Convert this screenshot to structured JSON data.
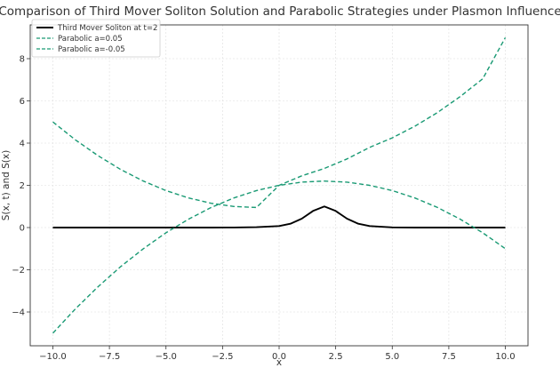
{
  "chart_data": {
    "type": "line",
    "title": "Comparison of Third Mover Soliton Solution and Parabolic Strategies under Plasmon Influence",
    "xlabel": "x",
    "ylabel": "S(x, t) and S(x)",
    "xlim": [
      -11,
      11
    ],
    "ylim": [
      -5.6,
      9.6
    ],
    "xticks": [
      -10,
      -7.5,
      -5,
      -2.5,
      0,
      2.5,
      5,
      7.5,
      10
    ],
    "xtick_labels": [
      "−10.0",
      "−7.5",
      "−5.0",
      "−2.5",
      "0.0",
      "2.5",
      "5.0",
      "7.5",
      "10.0"
    ],
    "yticks": [
      -4,
      -2,
      0,
      2,
      4,
      6,
      8
    ],
    "ytick_labels": [
      "−4",
      "−2",
      "0",
      "2",
      "4",
      "6",
      "8"
    ],
    "grid": true,
    "legend_position": "top-left",
    "series": [
      {
        "name": "Third Mover Soliton at t=2",
        "color": "#000000",
        "style": "solid",
        "x": [
          -10,
          -6,
          -3,
          -2,
          -1,
          0,
          0.5,
          1,
          1.5,
          2,
          2.5,
          3,
          3.5,
          4,
          5,
          6,
          8,
          10
        ],
        "y": [
          0,
          0,
          0,
          0.003,
          0.015,
          0.071,
          0.181,
          0.42,
          0.787,
          1.0,
          0.787,
          0.42,
          0.181,
          0.071,
          0.01,
          0.001,
          0,
          0
        ]
      },
      {
        "name": "Parabolic a=0.05",
        "color": "#1a9a74",
        "style": "dashed",
        "x": [
          -10,
          -9,
          -8,
          -7,
          -6,
          -5,
          -4,
          -3,
          -2,
          -1,
          0,
          1,
          2,
          3,
          4,
          5,
          6,
          7,
          8,
          9,
          10
        ],
        "y": [
          -5,
          -3.85,
          -2.8,
          -1.85,
          -1,
          -0.25,
          0.4,
          0.95,
          1.4,
          1.75,
          2,
          2.15,
          2.2,
          2.15,
          2,
          1.75,
          1.4,
          0.95,
          0.4,
          -0.25,
          -1
        ]
      },
      {
        "name": "Parabolic a=-0.05",
        "color": "#1a9a74",
        "style": "dashed",
        "x": [
          -10,
          -9,
          -8,
          -7,
          -6,
          -5,
          -4,
          -3,
          -2,
          -1,
          0,
          1,
          2,
          3,
          4,
          5,
          6,
          7,
          8,
          9,
          10
        ],
        "y": [
          5,
          4.15,
          3.4,
          2.75,
          2.2,
          1.75,
          1.4,
          1.15,
          1.0,
          0.95,
          2,
          2.45,
          2.8,
          3.25,
          3.8,
          4.25,
          4.8,
          5.45,
          6.2,
          7.05,
          9
        ]
      }
    ]
  }
}
